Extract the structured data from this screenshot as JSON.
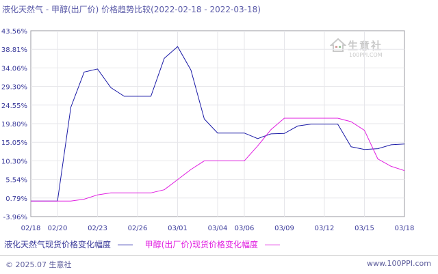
{
  "title": "液化天然气 - 甲醇(出厂价) 价格趋势比较(2022-02-18 - 2022-03-18)",
  "chart_data": {
    "type": "line",
    "x_categories": [
      "02/18",
      "02/19",
      "02/20",
      "02/21",
      "02/22",
      "02/23",
      "02/24",
      "02/25",
      "02/26",
      "02/27",
      "02/28",
      "03/01",
      "03/02",
      "03/03",
      "03/04",
      "03/05",
      "03/06",
      "03/07",
      "03/08",
      "03/09",
      "03/10",
      "03/11",
      "03/12",
      "03/13",
      "03/14",
      "03/15",
      "03/16",
      "03/17",
      "03/18"
    ],
    "x_tick_labels": [
      "02/18",
      "02/20",
      "02/23",
      "02/26",
      "03/01",
      "03/04",
      "03/06",
      "03/09",
      "03/12",
      "03/15",
      "03/18"
    ],
    "y_tick_labels": [
      "43.56%",
      "38.81%",
      "34.06%",
      "29.30%",
      "24.55%",
      "19.80%",
      "15.05%",
      "10.30%",
      "5.54%",
      "0.79%",
      "-3.96%"
    ],
    "y_ticks": [
      43.56,
      38.81,
      34.06,
      29.3,
      24.55,
      19.8,
      15.05,
      10.3,
      5.54,
      0.79,
      -3.96
    ],
    "ylim": [
      -3.96,
      43.56
    ],
    "grid": true,
    "legend_position": "bottom",
    "series": [
      {
        "name": "液化天然气现货价格变化幅度",
        "color": "#1a1aa6",
        "points": [
          [
            0,
            0
          ],
          [
            2,
            0
          ],
          [
            3,
            24
          ],
          [
            4,
            33
          ],
          [
            5,
            33.8
          ],
          [
            6,
            29
          ],
          [
            7,
            26.8
          ],
          [
            8,
            26.8
          ],
          [
            9,
            26.8
          ],
          [
            10,
            36.5
          ],
          [
            11,
            39.5
          ],
          [
            12,
            33.5
          ],
          [
            13,
            21
          ],
          [
            14,
            17.4
          ],
          [
            15,
            17.4
          ],
          [
            16,
            17.4
          ],
          [
            17,
            16
          ],
          [
            18,
            17.2
          ],
          [
            19,
            17.3
          ],
          [
            20,
            19.2
          ],
          [
            21,
            19.7
          ],
          [
            22,
            19.7
          ],
          [
            23,
            19.7
          ],
          [
            24,
            13.9
          ],
          [
            25,
            13.2
          ],
          [
            26,
            13.4
          ],
          [
            27,
            14.4
          ],
          [
            28,
            14.6
          ]
        ]
      },
      {
        "name": "甲醇(出厂价)现货价格变化幅度",
        "color": "#e01de0",
        "points": [
          [
            0,
            0
          ],
          [
            2,
            0
          ],
          [
            3,
            0
          ],
          [
            4,
            0.5
          ],
          [
            5,
            1.6
          ],
          [
            6,
            2.1
          ],
          [
            7,
            2.1
          ],
          [
            8,
            2.1
          ],
          [
            9,
            2.1
          ],
          [
            10,
            2.9
          ],
          [
            11,
            5.5
          ],
          [
            12,
            8.1
          ],
          [
            13,
            10.3
          ],
          [
            14,
            10.3
          ],
          [
            15,
            10.3
          ],
          [
            16,
            10.3
          ],
          [
            17,
            14.1
          ],
          [
            18,
            18.3
          ],
          [
            19,
            21.2
          ],
          [
            20,
            21.2
          ],
          [
            21,
            21.2
          ],
          [
            22,
            21.2
          ],
          [
            23,
            21.2
          ],
          [
            24,
            20.3
          ],
          [
            25,
            18.1
          ],
          [
            26,
            10.8
          ],
          [
            27,
            8.9
          ],
          [
            28,
            7.8
          ]
        ]
      }
    ]
  },
  "watermark": {
    "text": "生意社",
    "sub": "100PPI.COM"
  },
  "footer": {
    "left": "© 2025.07 生意社",
    "right": "www.100PPI.com"
  }
}
